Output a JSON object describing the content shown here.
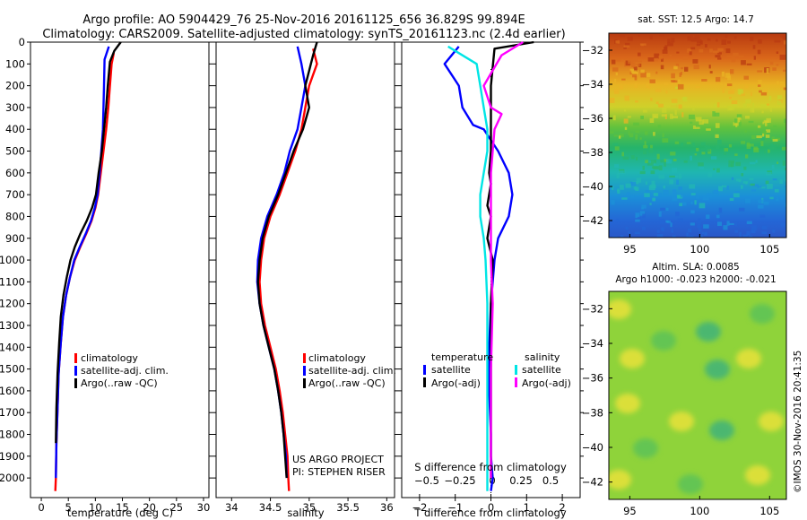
{
  "title_line1": "Argo profile: AO 5904429_76 25-Nov-2016 20161125_656 36.829S 99.894E",
  "title_line2": "Climatology: CARS2009. Satellite-adjusted climatology: synTS_20161123.nc (2.4d earlier)",
  "map1_title": "sat. SST: 12.5 Argo: 14.7",
  "map2_title1": "Altim. SLA: 0.0085",
  "map2_title2": "Argo h1000: -0.023 h2000: -0.021",
  "project_line1": "US ARGO PROJECT",
  "project_line2": "PI: STEPHEN RISER",
  "imos_stamp": "©IMOS 30-Nov-2016 20:41:35",
  "colors": {
    "climatology": "#ff0000",
    "satellite": "#0000ff",
    "argo": "#000000",
    "sat_salinity": "#00e5e5",
    "argo_salinity": "#ff00ff"
  },
  "chart_data": [
    {
      "type": "line",
      "xlabel": "temperature (deg C)",
      "ylabel": "",
      "xlim": [
        -2,
        31
      ],
      "ylim": [
        2090,
        0
      ],
      "y_inverted": true,
      "xticks": [
        0,
        5,
        10,
        15,
        20,
        25,
        30
      ],
      "yticks": [
        0,
        100,
        200,
        300,
        400,
        500,
        600,
        700,
        800,
        900,
        1000,
        1100,
        1200,
        1300,
        1400,
        1500,
        1600,
        1700,
        1800,
        1900,
        2000
      ],
      "legend": [
        "climatology",
        "satellite-adj. clim.",
        "Argo(..raw -QC)"
      ],
      "series": [
        {
          "name": "climatology",
          "color": "#ff0000",
          "x": [
            13.4,
            13.0,
            12.7,
            12.4,
            12.0,
            11.5,
            11.0,
            10.5,
            10.0,
            9.3,
            8.3,
            7.2,
            6.2,
            5.3,
            4.6,
            4.0,
            3.6,
            3.2,
            3.0,
            2.8,
            2.7,
            2.6
          ],
          "y": [
            50,
            100,
            200,
            300,
            400,
            500,
            600,
            700,
            760,
            820,
            880,
            940,
            1000,
            1080,
            1160,
            1260,
            1380,
            1520,
            1680,
            1840,
            2000,
            2060
          ]
        },
        {
          "name": "satellite-adj. clim.",
          "color": "#0000ff",
          "x": [
            12.5,
            11.7,
            11.6,
            11.5,
            11.4,
            11.1,
            10.8,
            10.4,
            9.9,
            9.2,
            8.2,
            7.1,
            6.1,
            5.3,
            4.6,
            4.0,
            3.6,
            3.2,
            3.0,
            2.8,
            2.7
          ],
          "y": [
            20,
            80,
            200,
            300,
            400,
            500,
            600,
            700,
            760,
            820,
            880,
            940,
            1000,
            1080,
            1160,
            1260,
            1380,
            1520,
            1680,
            1840,
            2000
          ]
        },
        {
          "name": "Argo(..raw -QC)",
          "color": "#000000",
          "x": [
            14.7,
            13.5,
            12.7,
            12.3,
            12.0,
            11.6,
            11.2,
            10.6,
            10.1,
            9.4,
            8.4,
            7.2,
            6.2,
            5.4,
            4.7,
            4.1,
            3.6,
            3.3,
            3.0,
            2.8,
            2.7
          ],
          "y": [
            0,
            40,
            90,
            200,
            300,
            400,
            500,
            600,
            700,
            760,
            820,
            880,
            940,
            1000,
            1080,
            1160,
            1260,
            1380,
            1520,
            1680,
            1840
          ]
        }
      ]
    },
    {
      "type": "line",
      "xlabel": "salinity",
      "xlim": [
        33.8,
        36.1
      ],
      "ylim": [
        2090,
        0
      ],
      "y_inverted": true,
      "xticks": [
        34,
        34.5,
        35,
        35.5,
        36
      ],
      "legend": [
        "climatology",
        "satellite-adj. clim.",
        "Argo(..raw -QC)"
      ],
      "series": [
        {
          "name": "climatology",
          "color": "#ff0000",
          "x": [
            35.05,
            35.1,
            35.0,
            34.95,
            34.9,
            34.82,
            34.72,
            34.62,
            34.5,
            34.42,
            34.38,
            34.36,
            34.38,
            34.43,
            34.5,
            34.57,
            34.62,
            34.66,
            34.69,
            34.72,
            34.73,
            34.74
          ],
          "y": [
            30,
            100,
            200,
            300,
            400,
            500,
            600,
            700,
            800,
            900,
            1000,
            1100,
            1200,
            1300,
            1400,
            1500,
            1600,
            1700,
            1800,
            1900,
            2000,
            2060
          ]
        },
        {
          "name": "satellite-adj. clim.",
          "color": "#0000ff",
          "x": [
            34.85,
            34.9,
            34.95,
            34.9,
            34.85,
            34.75,
            34.68,
            34.58,
            34.46,
            34.38,
            34.34,
            34.33,
            34.36,
            34.41,
            34.48,
            34.55,
            34.6,
            34.64,
            34.67,
            34.7,
            34.71
          ],
          "y": [
            20,
            100,
            200,
            300,
            400,
            500,
            600,
            700,
            800,
            900,
            1000,
            1100,
            1200,
            1300,
            1400,
            1500,
            1600,
            1700,
            1800,
            1900,
            2000
          ]
        },
        {
          "name": "Argo(..raw -QC)",
          "color": "#000000",
          "x": [
            35.1,
            35.05,
            34.95,
            35.0,
            34.92,
            34.8,
            34.7,
            34.6,
            34.48,
            34.4,
            34.36,
            34.34,
            34.36,
            34.41,
            34.48,
            34.55,
            34.6,
            34.64,
            34.67,
            34.69,
            34.71
          ],
          "y": [
            0,
            60,
            200,
            300,
            400,
            500,
            600,
            700,
            800,
            900,
            1000,
            1100,
            1200,
            1300,
            1400,
            1500,
            1600,
            1700,
            1800,
            1900,
            2000
          ]
        }
      ]
    },
    {
      "type": "line",
      "xlabel": "T difference from climatology",
      "xlabel_top": "S difference from climatology",
      "xlim": [
        -2.5,
        2.5
      ],
      "ylim": [
        2090,
        0
      ],
      "y_inverted": true,
      "xticks": [
        -2,
        -1,
        0,
        1,
        2
      ],
      "xticks_S": [
        -0.5,
        -0.25,
        0,
        0.25,
        0.5
      ],
      "legend_headers": [
        "temperature",
        "salinity"
      ],
      "legend": [
        "satellite",
        "Argo(-adj)",
        "satellite",
        "Argo(-adj)"
      ],
      "series": [
        {
          "name": "satellite",
          "group": "temperature",
          "color": "#0000ff",
          "x": [
            -0.9,
            -1.3,
            -0.9,
            -0.8,
            -0.5,
            -0.2,
            0.2,
            0.5,
            0.6,
            0.5,
            0.2,
            0.1,
            0.0,
            -0.05,
            -0.05,
            0.0,
            0.0,
            0.05,
            0.0
          ],
          "y": [
            20,
            100,
            200,
            300,
            380,
            400,
            500,
            600,
            700,
            800,
            900,
            1000,
            1200,
            1400,
            1600,
            1800,
            1900,
            2000,
            2060
          ]
        },
        {
          "name": "Argo(-adj)",
          "group": "temperature",
          "color": "#000000",
          "x": [
            1.2,
            0.1,
            0.0,
            0.0,
            0.0,
            -0.05,
            0.0,
            -0.1,
            0.0,
            -0.1,
            0.05,
            0.0,
            0.0,
            0.0,
            0.0
          ],
          "y": [
            0,
            30,
            200,
            300,
            500,
            600,
            650,
            750,
            800,
            900,
            1000,
            1200,
            1500,
            1800,
            2000
          ]
        },
        {
          "name": "satellite",
          "group": "salinity",
          "color": "#00e5e5",
          "x": [
            -1.2,
            -0.4,
            -0.3,
            -0.2,
            -0.1,
            -0.1,
            -0.2,
            -0.3,
            -0.3,
            -0.2,
            -0.15,
            -0.1,
            -0.1,
            -0.1,
            -0.1,
            -0.1,
            -0.1
          ],
          "y": [
            20,
            100,
            200,
            300,
            400,
            500,
            600,
            700,
            800,
            900,
            1000,
            1200,
            1400,
            1600,
            1800,
            1950,
            2060
          ]
        },
        {
          "name": "Argo(-adj)",
          "group": "salinity",
          "color": "#ff00ff",
          "x": [
            0.9,
            0.3,
            -0.2,
            0.0,
            0.3,
            0.1,
            0.0,
            0.0,
            0.0,
            0.05,
            0.0,
            0.0,
            0.0
          ],
          "y": [
            0,
            60,
            200,
            300,
            330,
            400,
            600,
            800,
            1000,
            1200,
            1500,
            1800,
            2000
          ]
        }
      ]
    },
    {
      "type": "heatmap",
      "title": "sat. SST: 12.5 Argo: 14.7",
      "xlim": [
        93.5,
        106.2
      ],
      "ylim": [
        -43,
        -31
      ],
      "xticks": [
        95,
        100,
        105
      ],
      "yticks": [
        -32,
        -34,
        -36,
        -38,
        -40,
        -42
      ],
      "argo_position": [
        99.894,
        -36.829
      ]
    },
    {
      "type": "heatmap",
      "title": "Altim. SLA: 0.0085",
      "xlim": [
        93.5,
        106.2
      ],
      "ylim": [
        -43,
        -31
      ],
      "xticks": [
        95,
        100,
        105
      ],
      "yticks": [
        -32,
        -34,
        -36,
        -38,
        -40,
        -42
      ]
    }
  ]
}
